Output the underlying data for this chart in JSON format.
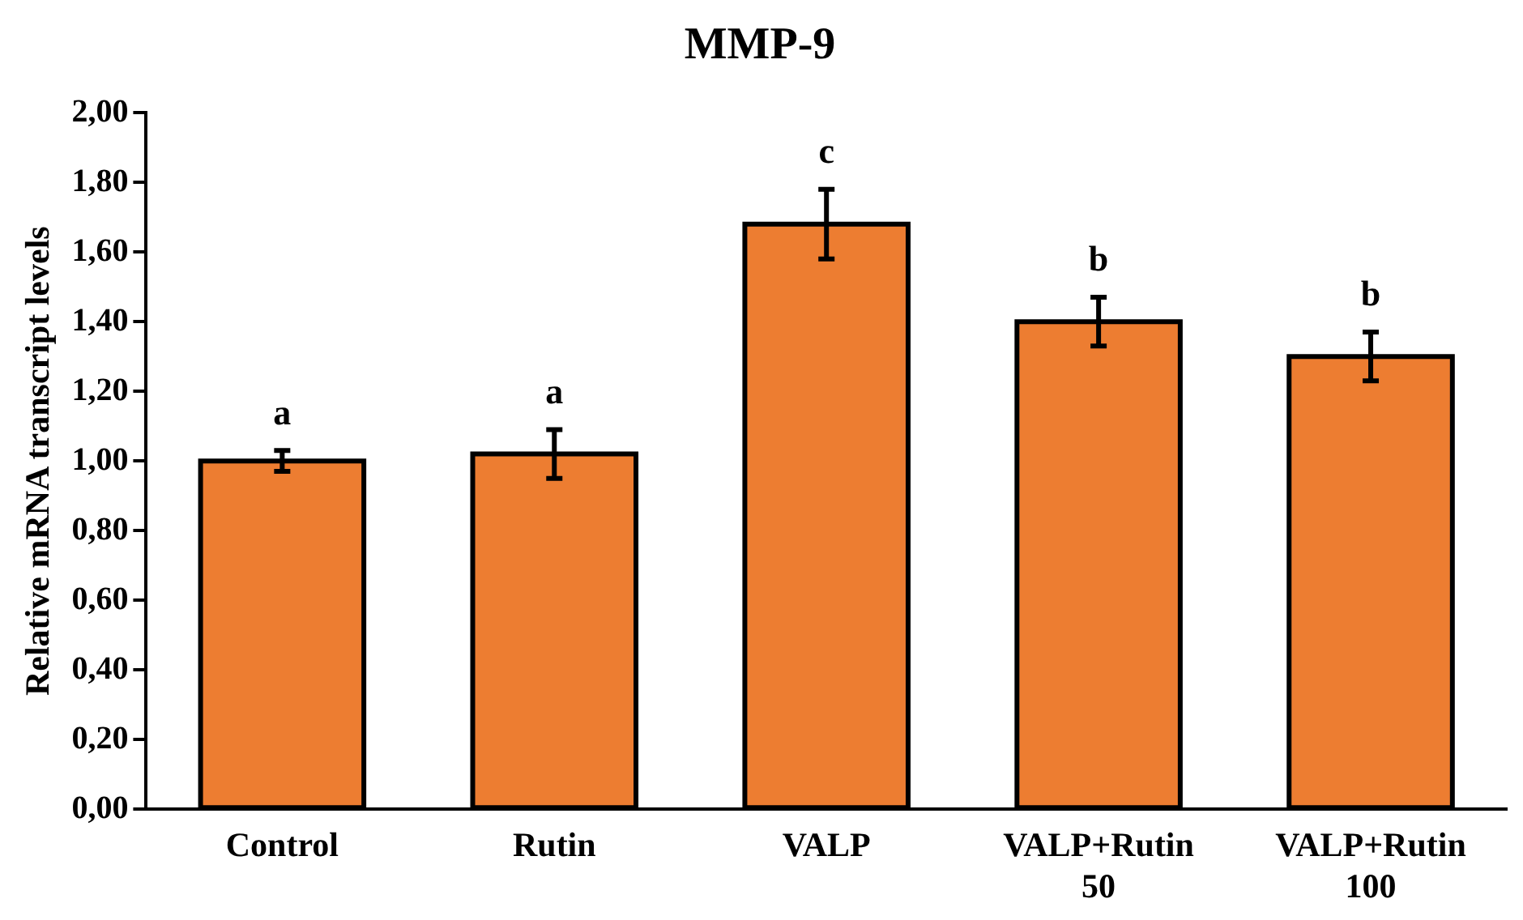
{
  "chart_data": {
    "type": "bar",
    "title": "MMP-9",
    "ylabel": "Relative mRNA transcript levels",
    "categories": [
      "Control",
      "Rutin",
      "VALP",
      "VALP+Rutin 50",
      "VALP+Rutin 100"
    ],
    "values": [
      1.0,
      1.02,
      1.68,
      1.4,
      1.3
    ],
    "errors": [
      0.03,
      0.07,
      0.1,
      0.07,
      0.07
    ],
    "color": "#ed7d31",
    "ylim": [
      0,
      2
    ],
    "yticks": [
      {
        "value": 0,
        "label": "0,00"
      },
      {
        "value": 0.2,
        "label": "0,20"
      },
      {
        "value": 0.4,
        "label": "0,40"
      },
      {
        "value": 0.6,
        "label": "0,60"
      },
      {
        "value": 0.8,
        "label": "0,80"
      },
      {
        "value": 1,
        "label": "1,00"
      },
      {
        "value": 1.2,
        "label": "1,20"
      },
      {
        "value": 1.4,
        "label": "1,40"
      },
      {
        "value": 1.6,
        "label": "1,60"
      },
      {
        "value": 1.8,
        "label": "1,80"
      },
      {
        "value": 2,
        "label": "2,00"
      }
    ],
    "annotations": [
      "a",
      "a",
      "c",
      "b",
      "b"
    ],
    "grid": false,
    "legend": false
  }
}
